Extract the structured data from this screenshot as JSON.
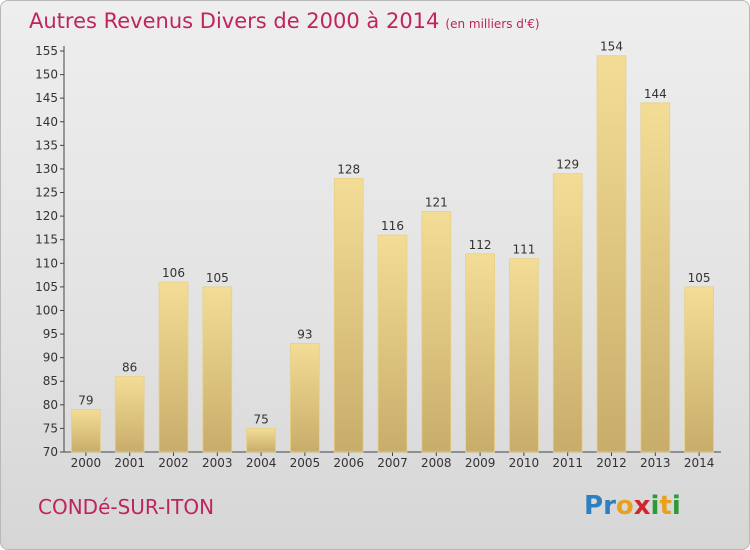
{
  "title": "Autres Revenus Divers de 2000 à 2014",
  "subtitle": "(en milliers d'€)",
  "location": "CONDé-SUR-ITON",
  "logo": {
    "letters": [
      "P",
      "r",
      "o",
      "x",
      "i",
      "t",
      "i"
    ],
    "colors": [
      "#2d7fc0",
      "#2d7fc0",
      "#e8a020",
      "#d0242e",
      "#2d9a3a",
      "#e8a020",
      "#2d9a3a"
    ]
  },
  "colors": {
    "bar_light": "#f3dd96",
    "bar_dark": "#c8ad6a",
    "accent": "#c0245f"
  },
  "chart_data": {
    "type": "bar",
    "categories": [
      "2000",
      "2001",
      "2002",
      "2003",
      "2004",
      "2005",
      "2006",
      "2007",
      "2008",
      "2009",
      "2010",
      "2011",
      "2012",
      "2013",
      "2014"
    ],
    "values": [
      79,
      86,
      106,
      105,
      75,
      93,
      128,
      116,
      121,
      112,
      111,
      129,
      154,
      144,
      105
    ],
    "ylim": [
      70,
      155
    ],
    "yticks": [
      70,
      75,
      80,
      85,
      90,
      95,
      100,
      105,
      110,
      115,
      120,
      125,
      130,
      135,
      140,
      145,
      150,
      155
    ],
    "grid": false,
    "legend": "none"
  }
}
